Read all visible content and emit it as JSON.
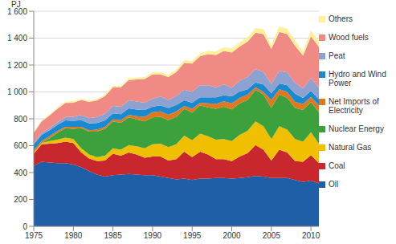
{
  "chart_data": {
    "type": "area",
    "stacked": true,
    "grid": true,
    "legend": "right",
    "y_label": "PJ",
    "x": [
      1975,
      1976,
      1977,
      1978,
      1979,
      1980,
      1981,
      1982,
      1983,
      1984,
      1985,
      1986,
      1987,
      1988,
      1989,
      1990,
      1991,
      1992,
      1993,
      1994,
      1995,
      1996,
      1997,
      1998,
      1999,
      2000,
      2001,
      2002,
      2003,
      2004,
      2005,
      2006,
      2007,
      2008,
      2009,
      2010,
      2011
    ],
    "xlim": [
      1975,
      2011
    ],
    "xticks": [
      1975,
      1980,
      1985,
      1990,
      1995,
      2000,
      2005,
      2010
    ],
    "ylim": [
      0,
      1600
    ],
    "yticks": [
      0,
      200,
      400,
      600,
      800,
      {
        "value": 1000,
        "label": "1 000"
      },
      {
        "value": 1200,
        "label": "1 200"
      },
      {
        "value": 1400,
        "label": "1 400"
      },
      {
        "value": 1600,
        "label": "1 600"
      }
    ],
    "series": [
      {
        "name": "Oil",
        "color": "#1f5fa8",
        "values": [
          450,
          480,
          475,
          470,
          470,
          460,
          440,
          410,
          385,
          370,
          380,
          385,
          390,
          385,
          380,
          380,
          370,
          360,
          350,
          355,
          345,
          355,
          355,
          360,
          360,
          355,
          360,
          365,
          375,
          370,
          360,
          360,
          360,
          345,
          330,
          340,
          320
        ]
      },
      {
        "name": "Coal",
        "color": "#c8282d",
        "values": [
          90,
          130,
          140,
          150,
          160,
          160,
          110,
          95,
          100,
          120,
          160,
          140,
          160,
          150,
          130,
          140,
          150,
          130,
          150,
          200,
          170,
          200,
          180,
          140,
          140,
          130,
          160,
          180,
          230,
          200,
          130,
          210,
          190,
          140,
          150,
          190,
          150
        ]
      },
      {
        "name": "Natural Gas",
        "color": "#f0c000",
        "values": [
          5,
          10,
          20,
          25,
          30,
          30,
          30,
          30,
          30,
          35,
          40,
          45,
          55,
          60,
          70,
          90,
          95,
          100,
          110,
          120,
          125,
          135,
          135,
          145,
          150,
          150,
          160,
          165,
          175,
          175,
          160,
          175,
          170,
          165,
          150,
          170,
          145
        ]
      },
      {
        "name": "Nuclear Energy",
        "color": "#3ca03c",
        "values": [
          0,
          0,
          20,
          50,
          70,
          75,
          150,
          170,
          190,
          200,
          200,
          200,
          205,
          200,
          200,
          200,
          200,
          200,
          205,
          200,
          205,
          210,
          215,
          230,
          240,
          235,
          235,
          230,
          235,
          235,
          230,
          235,
          235,
          230,
          235,
          225,
          235
        ]
      },
      {
        "name": "Net Imports of Electricity",
        "color": "#e07820",
        "values": [
          20,
          15,
          15,
          15,
          10,
          15,
          10,
          10,
          15,
          15,
          15,
          20,
          20,
          25,
          35,
          40,
          40,
          40,
          40,
          20,
          30,
          20,
          30,
          35,
          40,
          45,
          40,
          40,
          20,
          20,
          60,
          40,
          45,
          45,
          45,
          38,
          50
        ]
      },
      {
        "name": "Hydro and Wind Power",
        "color": "#1a8ad0",
        "values": [
          45,
          45,
          45,
          45,
          48,
          45,
          50,
          50,
          48,
          48,
          45,
          45,
          48,
          48,
          50,
          40,
          45,
          50,
          48,
          42,
          45,
          40,
          45,
          50,
          45,
          52,
          48,
          40,
          35,
          55,
          50,
          42,
          50,
          62,
          45,
          45,
          45
        ]
      },
      {
        "name": "Peat",
        "color": "#8ea2d2",
        "values": [
          10,
          15,
          15,
          20,
          25,
          30,
          40,
          40,
          45,
          50,
          55,
          55,
          60,
          60,
          55,
          60,
          65,
          60,
          65,
          80,
          80,
          90,
          90,
          75,
          80,
          65,
          80,
          90,
          100,
          95,
          70,
          95,
          95,
          80,
          70,
          95,
          85
        ]
      },
      {
        "name": "Wood fuels",
        "color": "#f08a84",
        "values": [
          75,
          85,
          95,
          100,
          105,
          105,
          110,
          120,
          125,
          130,
          140,
          145,
          150,
          165,
          175,
          180,
          165,
          170,
          180,
          200,
          210,
          215,
          230,
          240,
          250,
          260,
          255,
          265,
          270,
          280,
          260,
          290,
          285,
          275,
          245,
          310,
          305
        ]
      },
      {
        "name": "Others",
        "color": "#fff09a",
        "values": [
          8,
          8,
          8,
          10,
          10,
          10,
          10,
          10,
          10,
          12,
          12,
          12,
          14,
          14,
          15,
          15,
          16,
          17,
          18,
          20,
          20,
          22,
          24,
          25,
          28,
          30,
          30,
          32,
          35,
          35,
          30,
          40,
          40,
          40,
          30,
          45,
          45
        ]
      }
    ]
  }
}
